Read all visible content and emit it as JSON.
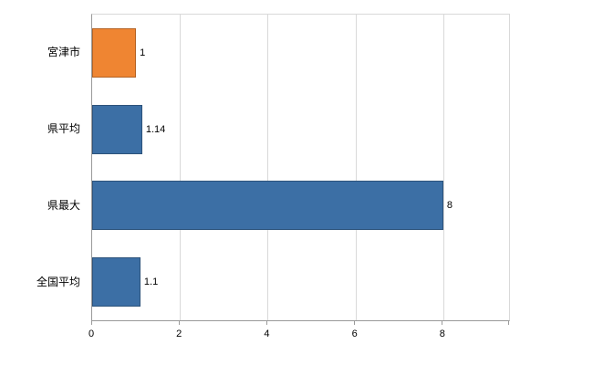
{
  "chart_data": {
    "type": "bar",
    "orientation": "horizontal",
    "title": "",
    "xlabel": "",
    "ylabel": "",
    "categories": [
      "宮津市",
      "県平均",
      "県最大",
      "全国平均"
    ],
    "values": [
      1,
      1.14,
      8,
      1.1
    ],
    "value_labels": [
      "1",
      "1.14",
      "8",
      "1.1"
    ],
    "bar_colors": [
      "#ef8532",
      "#3c6fa5",
      "#3c6fa5",
      "#3c6fa5"
    ],
    "xlim": [
      0,
      9.5
    ],
    "x_ticks": [
      0,
      2,
      4,
      6,
      8
    ],
    "x_tick_labels": [
      "0",
      "2",
      "4",
      "6",
      "8"
    ],
    "grid": true,
    "legend": false,
    "colors": {
      "grid_line": "#d9d9d9",
      "axis_line": "#9a9a9a",
      "background": "#ffffff",
      "text": "#000000"
    }
  }
}
